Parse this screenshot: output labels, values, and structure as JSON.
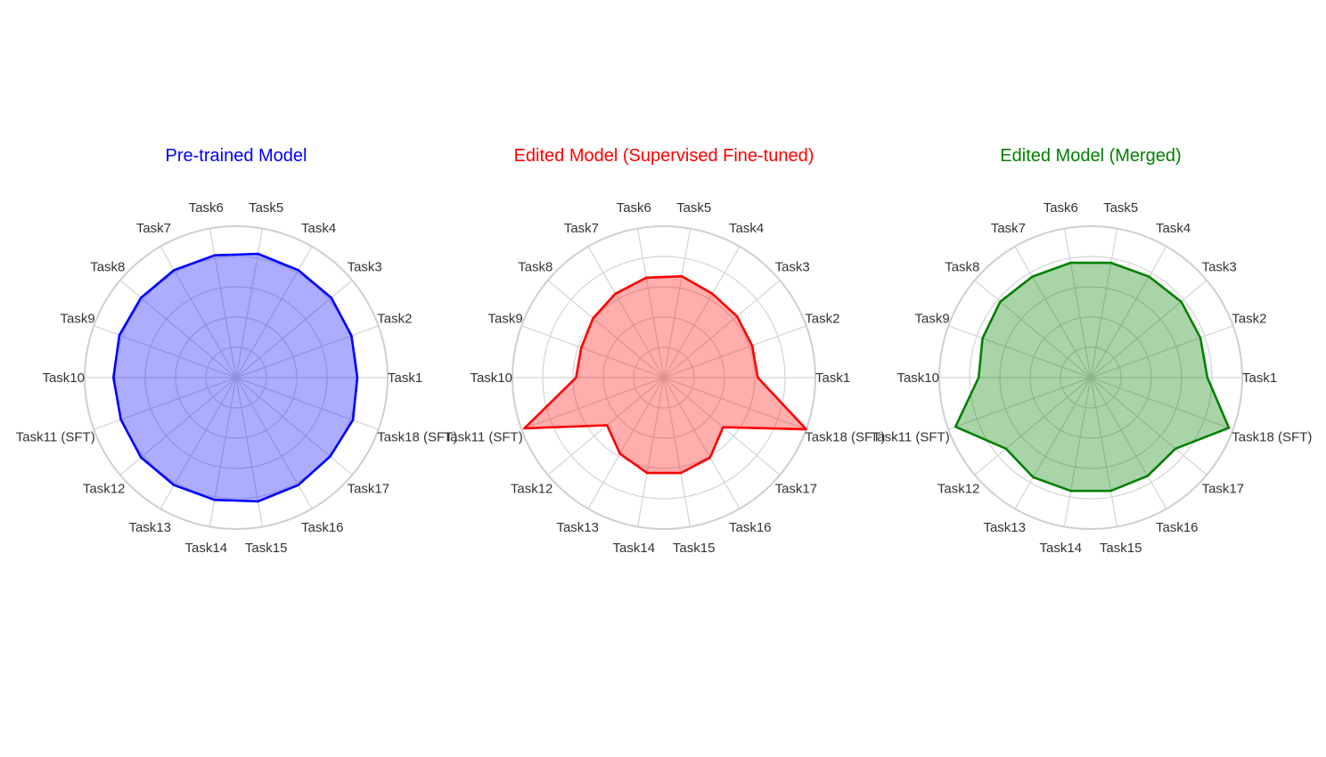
{
  "chart_data": [
    {
      "type": "radar",
      "title": "Pre-trained Model",
      "categories": [
        "Task1",
        "Task2",
        "Task3",
        "Task4",
        "Task5",
        "Task6",
        "Task7",
        "Task8",
        "Task9",
        "Task10",
        "Task11 (SFT)",
        "Task12",
        "Task13",
        "Task14",
        "Task15",
        "Task16",
        "Task17",
        "Task18 (SFT)"
      ],
      "values": [
        0.8,
        0.81,
        0.82,
        0.82,
        0.83,
        0.82,
        0.82,
        0.82,
        0.82,
        0.81,
        0.81,
        0.82,
        0.82,
        0.82,
        0.83,
        0.82,
        0.81,
        0.82
      ],
      "color": "#0000ff",
      "fill": "rgba(0, 0, 255, 0.32)",
      "rlim": [
        0,
        1
      ],
      "grid": true
    },
    {
      "type": "radar",
      "title": "Edited Model (Supervised Fine-tuned)",
      "categories": [
        "Task1",
        "Task2",
        "Task3",
        "Task4",
        "Task5",
        "Task6",
        "Task7",
        "Task8",
        "Task9",
        "Task10",
        "Task11 (SFT)",
        "Task12",
        "Task13",
        "Task14",
        "Task15",
        "Task16",
        "Task17",
        "Task18 (SFT)"
      ],
      "values": [
        0.62,
        0.62,
        0.63,
        0.64,
        0.68,
        0.67,
        0.64,
        0.61,
        0.58,
        0.58,
        0.98,
        0.49,
        0.58,
        0.64,
        0.64,
        0.61,
        0.51,
        1.0
      ],
      "color": "#ff0000",
      "fill": "rgba(255, 0, 0, 0.32)",
      "rlim": [
        0,
        1
      ],
      "grid": true
    },
    {
      "type": "radar",
      "title": "Edited Model (Merged)",
      "categories": [
        "Task1",
        "Task2",
        "Task3",
        "Task4",
        "Task5",
        "Task6",
        "Task7",
        "Task8",
        "Task9",
        "Task10",
        "Task11 (SFT)",
        "Task12",
        "Task13",
        "Task14",
        "Task15",
        "Task16",
        "Task17",
        "Task18 (SFT)"
      ],
      "values": [
        0.77,
        0.77,
        0.78,
        0.77,
        0.77,
        0.77,
        0.77,
        0.78,
        0.76,
        0.74,
        0.95,
        0.73,
        0.76,
        0.76,
        0.76,
        0.75,
        0.73,
        0.97
      ],
      "color": "#008000",
      "fill": "rgba(0, 128, 0, 0.34)",
      "rlim": [
        0,
        1
      ],
      "grid": true
    }
  ]
}
